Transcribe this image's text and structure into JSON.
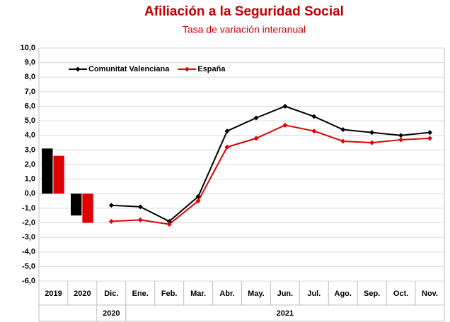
{
  "chart_data": {
    "type": "combo",
    "title": "Afiliación a la Seguridad Social",
    "subtitle": "Tasa de variación interanual",
    "categories": [
      "2019",
      "2020",
      "Dic.",
      "Ene.",
      "Feb.",
      "Mar.",
      "Abr.",
      "May.",
      "Jun.",
      "Jul.",
      "Ago.",
      "Sep.",
      "Oct.",
      "Nov."
    ],
    "groups": [
      {
        "label": "2020",
        "from": 2,
        "to": 2
      },
      {
        "label": "2021",
        "from": 3,
        "to": 13
      }
    ],
    "series": [
      {
        "name": "Comunitat Valenciana",
        "color": "#000000",
        "bars": [
          3.1,
          -1.5,
          null,
          null,
          null,
          null,
          null,
          null,
          null,
          null,
          null,
          null,
          null,
          null
        ],
        "values": [
          null,
          null,
          -0.8,
          -0.9,
          -1.9,
          -0.2,
          4.3,
          5.2,
          6.0,
          5.3,
          4.4,
          4.2,
          4.0,
          4.2
        ]
      },
      {
        "name": "España",
        "color": "#e00000",
        "bars": [
          2.6,
          -2.0,
          null,
          null,
          null,
          null,
          null,
          null,
          null,
          null,
          null,
          null,
          null,
          null
        ],
        "values": [
          null,
          null,
          -1.9,
          -1.8,
          -2.1,
          -0.5,
          3.2,
          3.8,
          4.7,
          4.3,
          3.6,
          3.5,
          3.7,
          3.8
        ]
      }
    ],
    "ylim": [
      -6,
      10
    ],
    "yticks": [
      {
        "value": -6,
        "label": "-6,0"
      },
      {
        "value": -5,
        "label": "-5,0"
      },
      {
        "value": -4,
        "label": "-4,0"
      },
      {
        "value": -3,
        "label": "-3,0"
      },
      {
        "value": -2,
        "label": "-2,0"
      },
      {
        "value": -1,
        "label": "-1,0"
      },
      {
        "value": 0,
        "label": "0,0"
      },
      {
        "value": 1,
        "label": "1,0"
      },
      {
        "value": 2,
        "label": "2,0"
      },
      {
        "value": 3,
        "label": "3,0"
      },
      {
        "value": 4,
        "label": "4,0"
      },
      {
        "value": 5,
        "label": "5,0"
      },
      {
        "value": 6,
        "label": "6,0"
      },
      {
        "value": 7,
        "label": "7,0"
      },
      {
        "value": 8,
        "label": "8,0"
      },
      {
        "value": 9,
        "label": "9,0"
      },
      {
        "value": 10,
        "label": "10,0"
      }
    ],
    "grid": true,
    "legend": "top-left"
  }
}
